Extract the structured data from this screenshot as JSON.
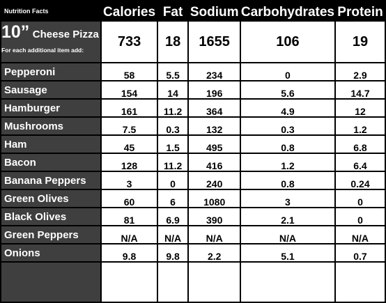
{
  "header": {
    "title": "Nutrition Facts",
    "columns": [
      "Calories",
      "Fat",
      "Sodium",
      "Carbohydrates",
      "Protein"
    ]
  },
  "pizza": {
    "size": "10”",
    "name": "Cheese Pizza",
    "note": "For each additional item add:",
    "values": [
      "733",
      "18",
      "1655",
      "106",
      "19"
    ]
  },
  "toppings": [
    {
      "name": "Pepperoni",
      "values": [
        "58",
        "5.5",
        "234",
        "0",
        "2.9"
      ]
    },
    {
      "name": "Sausage",
      "values": [
        "154",
        "14",
        "196",
        "5.6",
        "14.7"
      ]
    },
    {
      "name": "Hamburger",
      "values": [
        "161",
        "11.2",
        "364",
        "4.9",
        "12"
      ]
    },
    {
      "name": "Mushrooms",
      "values": [
        "7.5",
        "0.3",
        "132",
        "0.3",
        "1.2"
      ]
    },
    {
      "name": "Ham",
      "values": [
        "45",
        "1.5",
        "495",
        "0.8",
        "6.8"
      ]
    },
    {
      "name": "Bacon",
      "values": [
        "128",
        "11.2",
        "416",
        "1.2",
        "6.4"
      ]
    },
    {
      "name": "Banana Peppers",
      "values": [
        "3",
        "0",
        "240",
        "0.8",
        "0.24"
      ]
    },
    {
      "name": "Green Olives",
      "values": [
        "60",
        "6",
        "1080",
        "3",
        "0"
      ]
    },
    {
      "name": "Black Olives",
      "values": [
        "81",
        "6.9",
        "390",
        "2.1",
        "0"
      ]
    },
    {
      "name": "Green Peppers",
      "values": [
        "N/A",
        "N/A",
        "N/A",
        "N/A",
        "N/A"
      ]
    },
    {
      "name": "Onions",
      "values": [
        "9.8",
        "9.8",
        "2.2",
        "5.1",
        "0.7"
      ]
    }
  ]
}
